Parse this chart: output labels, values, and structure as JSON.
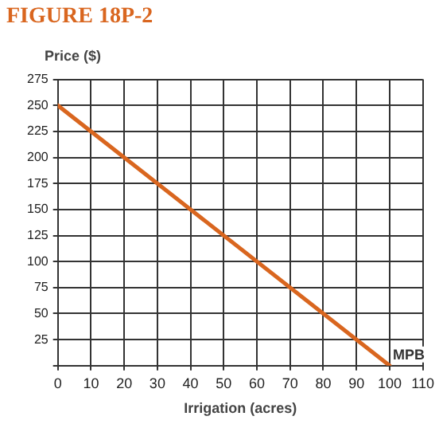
{
  "chart_data": {
    "type": "line",
    "title": "FIGURE 18P-2",
    "xlabel": "Irrigation (acres)",
    "ylabel": "Price ($)",
    "series": [
      {
        "name": "MPB",
        "color": "#d9661f",
        "x": [
          0,
          100
        ],
        "values": [
          250,
          0
        ]
      }
    ],
    "xlim": [
      0,
      110
    ],
    "xticks": [
      0,
      10,
      20,
      30,
      40,
      50,
      60,
      70,
      80,
      90,
      100,
      110
    ],
    "ylim": [
      0,
      275
    ],
    "yticks": [
      {
        "value": 0,
        "label": null
      },
      25,
      50,
      75,
      100,
      125,
      150,
      175,
      200,
      225,
      250,
      275
    ],
    "grid": true,
    "legend": false,
    "marker": "none",
    "line_style": "solid"
  }
}
